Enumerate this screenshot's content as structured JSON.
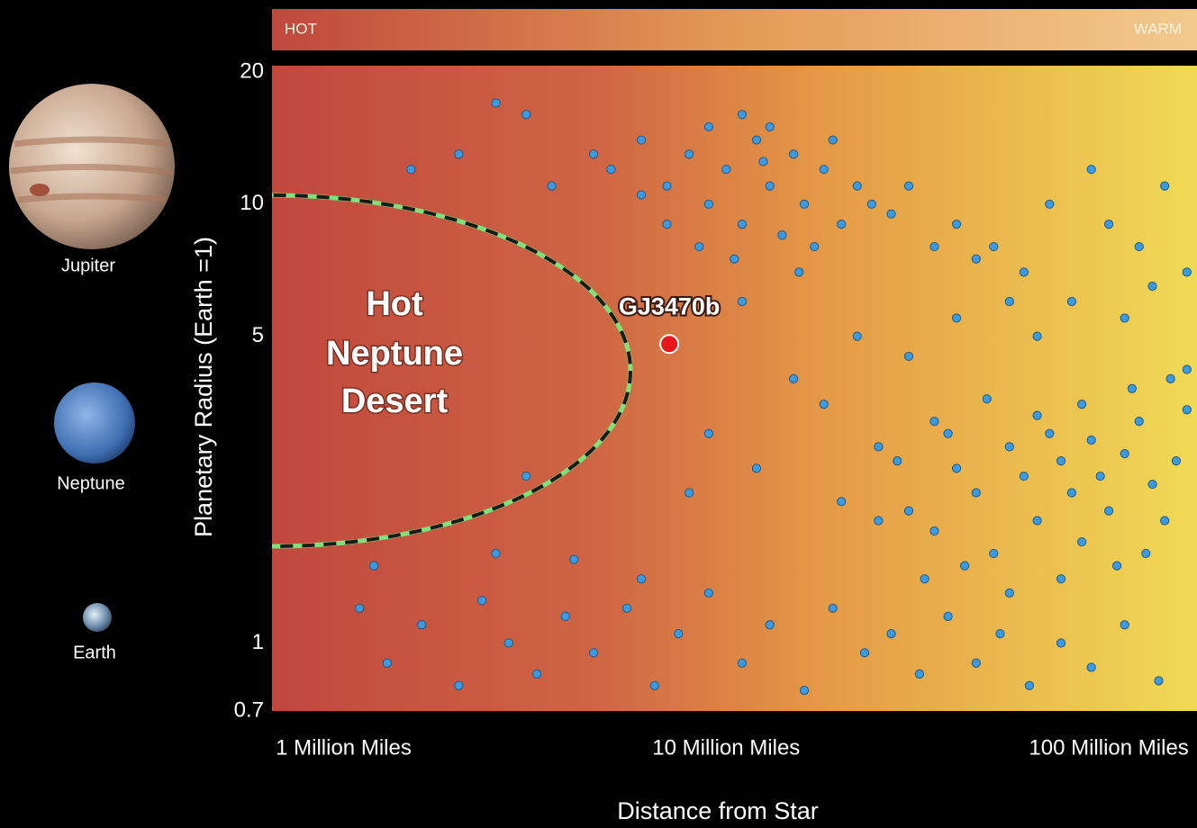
{
  "chart_data": {
    "type": "scatter",
    "temperature_labels": [
      "HOT",
      "WARM"
    ],
    "reference_planets": [
      "Jupiter",
      "Neptune",
      "Earth"
    ],
    "region_label": [
      "Hot",
      "Neptune",
      "Desert"
    ],
    "xlabel": "Distance from Star",
    "ylabel": "Planetary Radius (Earth =1)",
    "log_x": true,
    "log_y": true,
    "xlim": [
      0.65,
      170
    ],
    "ylim": [
      0.7,
      20
    ],
    "xticks": [
      {
        "value": 1,
        "label": "1 Million Miles"
      },
      {
        "value": 10,
        "label": "10 Million Miles"
      },
      {
        "value": 100,
        "label": "100 Million Miles"
      }
    ],
    "yticks": [
      0.7,
      1,
      5,
      10,
      20
    ],
    "series": [
      {
        "color": "#3c9be0",
        "x": [
          5,
          6,
          7,
          8,
          9,
          10,
          11,
          12,
          13,
          14,
          15,
          16,
          18,
          20,
          22,
          9,
          11,
          7,
          6,
          13,
          17,
          19,
          24,
          4.5,
          3.5,
          8.5,
          10.5,
          12.5,
          15.5,
          27,
          30,
          35,
          2,
          1.5,
          2.5,
          3,
          40,
          50,
          60,
          70,
          80,
          100,
          120,
          140,
          160,
          90,
          55,
          45,
          65,
          110,
          130,
          9,
          12,
          15,
          18,
          22,
          25,
          30,
          35,
          40,
          11,
          8,
          20,
          30,
          35,
          40,
          45,
          50,
          55,
          60,
          65,
          70,
          75,
          80,
          85,
          90,
          95,
          100,
          110,
          120,
          130,
          140,
          150,
          160,
          105,
          75,
          55,
          42,
          125,
          145,
          160,
          115,
          85,
          65,
          38,
          28,
          25,
          33,
          48,
          1.1,
          1.3,
          1.6,
          2,
          2.3,
          2.7,
          3.2,
          3.8,
          4.5,
          5.5,
          6.5,
          7.5,
          9,
          11,
          13,
          16,
          19,
          23,
          27,
          32,
          38,
          45,
          52,
          62,
          75,
          90,
          110,
          135,
          1.2,
          2.5,
          4,
          6,
          3
        ],
        "y": [
          12,
          14,
          11,
          13,
          10,
          12,
          9,
          14,
          11,
          8.5,
          13,
          10,
          12,
          9,
          11,
          15,
          16,
          9,
          10.5,
          15,
          8,
          14,
          10,
          13,
          11,
          8,
          7.5,
          12.5,
          7,
          9.5,
          11,
          8,
          13,
          12,
          17,
          16,
          9,
          8,
          7,
          10,
          6,
          9,
          8,
          11,
          7,
          12,
          6,
          7.5,
          5,
          5.5,
          6.5,
          3,
          2.5,
          4,
          3.5,
          5,
          2.8,
          4.5,
          3.2,
          5.5,
          6,
          2.2,
          2.1,
          2,
          1.8,
          2.5,
          2.2,
          1.6,
          2.8,
          2.4,
          1.9,
          3,
          2.6,
          2.2,
          1.7,
          2.9,
          2.4,
          2,
          2.7,
          3.2,
          2.3,
          1.9,
          2.6,
          3.4,
          1.5,
          1.4,
          1.3,
          1.5,
          1.6,
          4,
          4.2,
          3.8,
          3.5,
          3.3,
          3,
          2.6,
          1.9,
          1.4,
          3.6,
          1.2,
          0.9,
          1.1,
          0.8,
          1.25,
          1,
          0.85,
          1.15,
          0.95,
          1.2,
          0.8,
          1.05,
          1.3,
          0.9,
          1.1,
          0.78,
          1.2,
          0.95,
          1.05,
          0.85,
          1.15,
          0.9,
          1.05,
          0.8,
          1,
          0.88,
          1.1,
          0.82,
          1.5,
          1.6,
          1.55,
          1.4,
          2.4
        ]
      },
      {
        "name": "GJ3470b",
        "color": "#e8161b",
        "x": [
          7.1
        ],
        "y": [
          4.8
        ]
      }
    ]
  }
}
